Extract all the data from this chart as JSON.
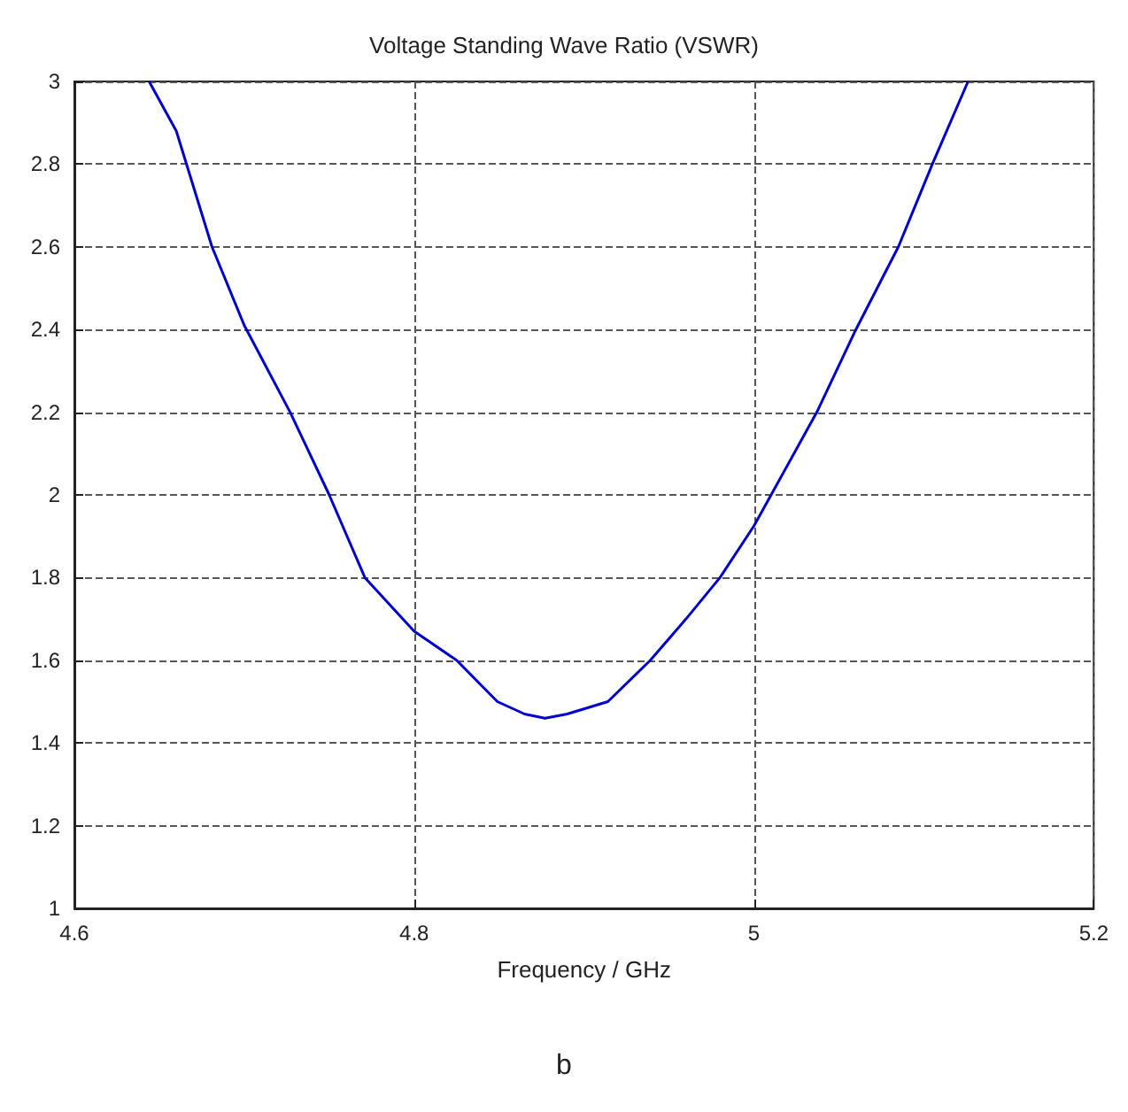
{
  "chart_data": {
    "type": "line",
    "title": "Voltage Standing Wave Ratio (VSWR)",
    "xlabel": "Frequency / GHz",
    "annotations": [
      "b"
    ],
    "xlim": [
      4.6,
      5.2
    ],
    "xticks": [
      4.6,
      4.8,
      5,
      5.2
    ],
    "ylim": [
      1,
      3
    ],
    "yticks": [
      1,
      1.2,
      1.4,
      1.6,
      1.8,
      2,
      2.2,
      2.4,
      2.6,
      2.8,
      3
    ],
    "grid": true,
    "marker": "none",
    "line_style": "solid",
    "series": [
      {
        "color": "#0000cc",
        "x": [
          4.644,
          4.66,
          4.681,
          4.7,
          4.727,
          4.75,
          4.771,
          4.8,
          4.825,
          4.849,
          4.865,
          4.877,
          4.89,
          4.914,
          4.939,
          4.96,
          4.98,
          5.0,
          5.037,
          5.06,
          5.085,
          5.105,
          5.126
        ],
        "values": [
          3,
          2.88,
          2.6,
          2.41,
          2.2,
          2.0,
          1.8,
          1.67,
          1.6,
          1.5,
          1.47,
          1.46,
          1.47,
          1.5,
          1.6,
          1.7,
          1.8,
          1.925,
          2.2,
          2.4,
          2.6,
          2.8,
          3
        ]
      }
    ]
  }
}
